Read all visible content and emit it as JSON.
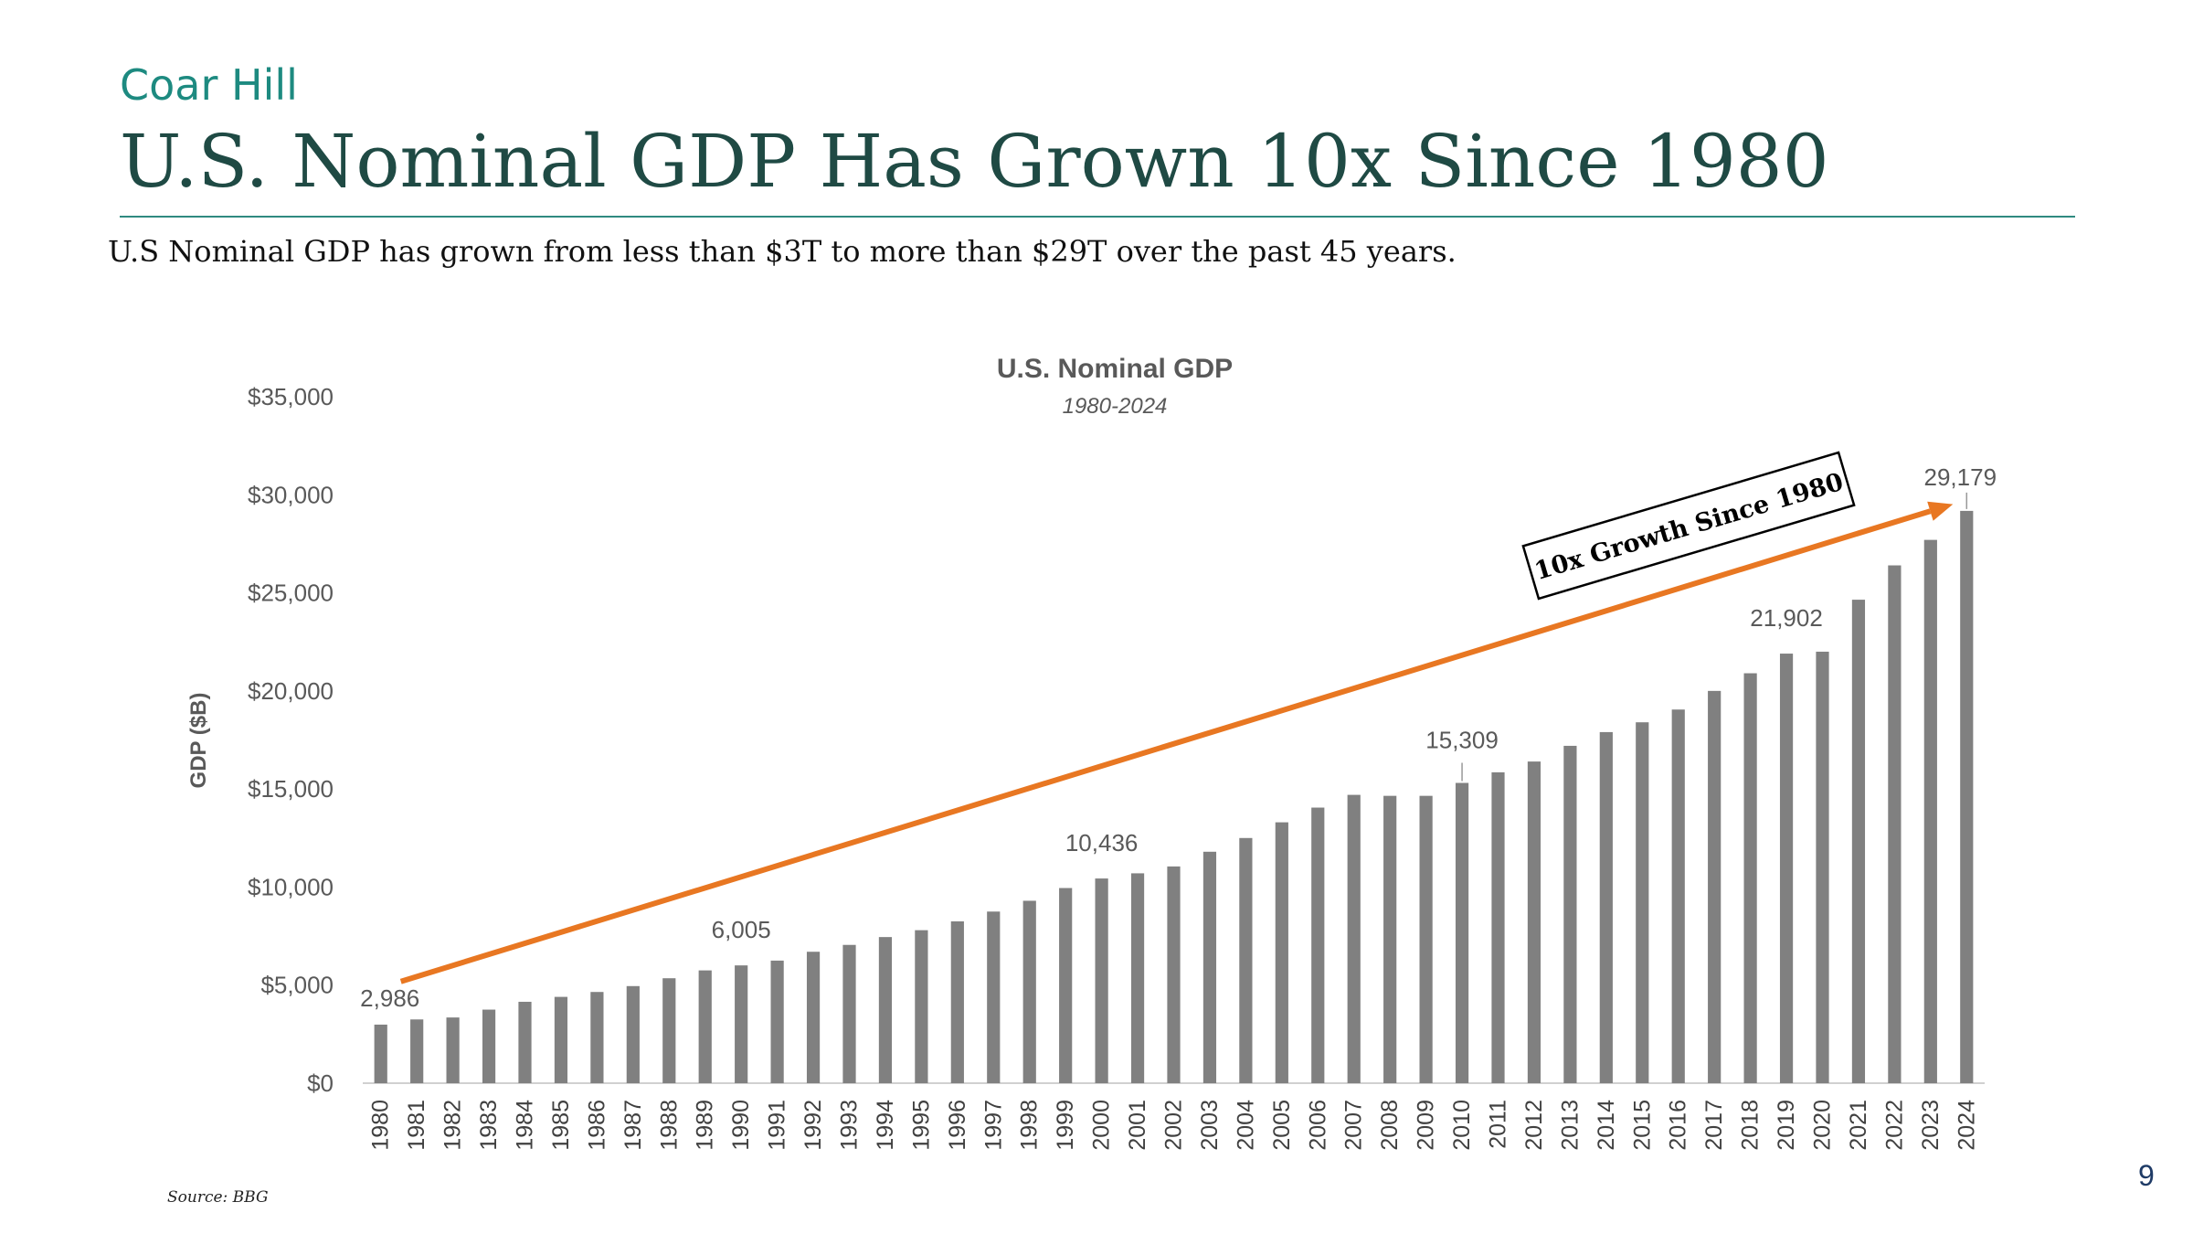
{
  "header": {
    "brand": "Coar Hill",
    "title": "U.S. Nominal GDP Has Grown 10x Since 1980",
    "subtitle": "U.S Nominal GDP has grown from less than $3T to more than $29T over the past 45 years."
  },
  "footer": {
    "source": "Source: BBG",
    "page_number": "9"
  },
  "colors": {
    "bar": "#808080",
    "arrow": "#e87722",
    "title": "#1f4a44",
    "brand": "#1d8a80"
  },
  "chart_data": {
    "type": "bar",
    "title": "U.S. Nominal GDP",
    "subtitle": "1980-2024",
    "xlabel": "",
    "ylabel": "GDP ($B)",
    "ylim": [
      0,
      35000
    ],
    "yticks": [
      "$0",
      "$5,000",
      "$10,000",
      "$15,000",
      "$20,000",
      "$25,000",
      "$30,000",
      "$35,000"
    ],
    "grid": false,
    "categories": [
      "1980",
      "1981",
      "1982",
      "1983",
      "1984",
      "1985",
      "1986",
      "1987",
      "1988",
      "1989",
      "1990",
      "1991",
      "1992",
      "1993",
      "1994",
      "1995",
      "1996",
      "1997",
      "1998",
      "1999",
      "2000",
      "2001",
      "2002",
      "2003",
      "2004",
      "2005",
      "2006",
      "2007",
      "2008",
      "2009",
      "2010",
      "2011",
      "2012",
      "2013",
      "2014",
      "2015",
      "2016",
      "2017",
      "2018",
      "2019",
      "2020",
      "2021",
      "2022",
      "2023",
      "2024"
    ],
    "values": [
      2986,
      3250,
      3350,
      3750,
      4150,
      4400,
      4650,
      4950,
      5350,
      5750,
      6005,
      6250,
      6700,
      7050,
      7450,
      7800,
      8250,
      8750,
      9300,
      9950,
      10436,
      10700,
      11050,
      11800,
      12500,
      13300,
      14050,
      14700,
      14650,
      14650,
      15309,
      15850,
      16400,
      17200,
      17900,
      18400,
      19050,
      20000,
      20900,
      21902,
      22000,
      24650,
      26400,
      27700,
      29179
    ],
    "data_labels": [
      {
        "category": "1980",
        "text": "2,986"
      },
      {
        "category": "1990",
        "text": "6,005"
      },
      {
        "category": "2000",
        "text": "10,436"
      },
      {
        "category": "2010",
        "text": "15,309"
      },
      {
        "category": "2019",
        "text": "21,902"
      },
      {
        "category": "2024",
        "text": "29,179"
      }
    ],
    "annotation": {
      "text": "10x Growth Since 1980",
      "arrow_from": {
        "category": "1980",
        "value": 5000
      },
      "arrow_to": {
        "category": "2024",
        "value": 29800
      }
    }
  }
}
